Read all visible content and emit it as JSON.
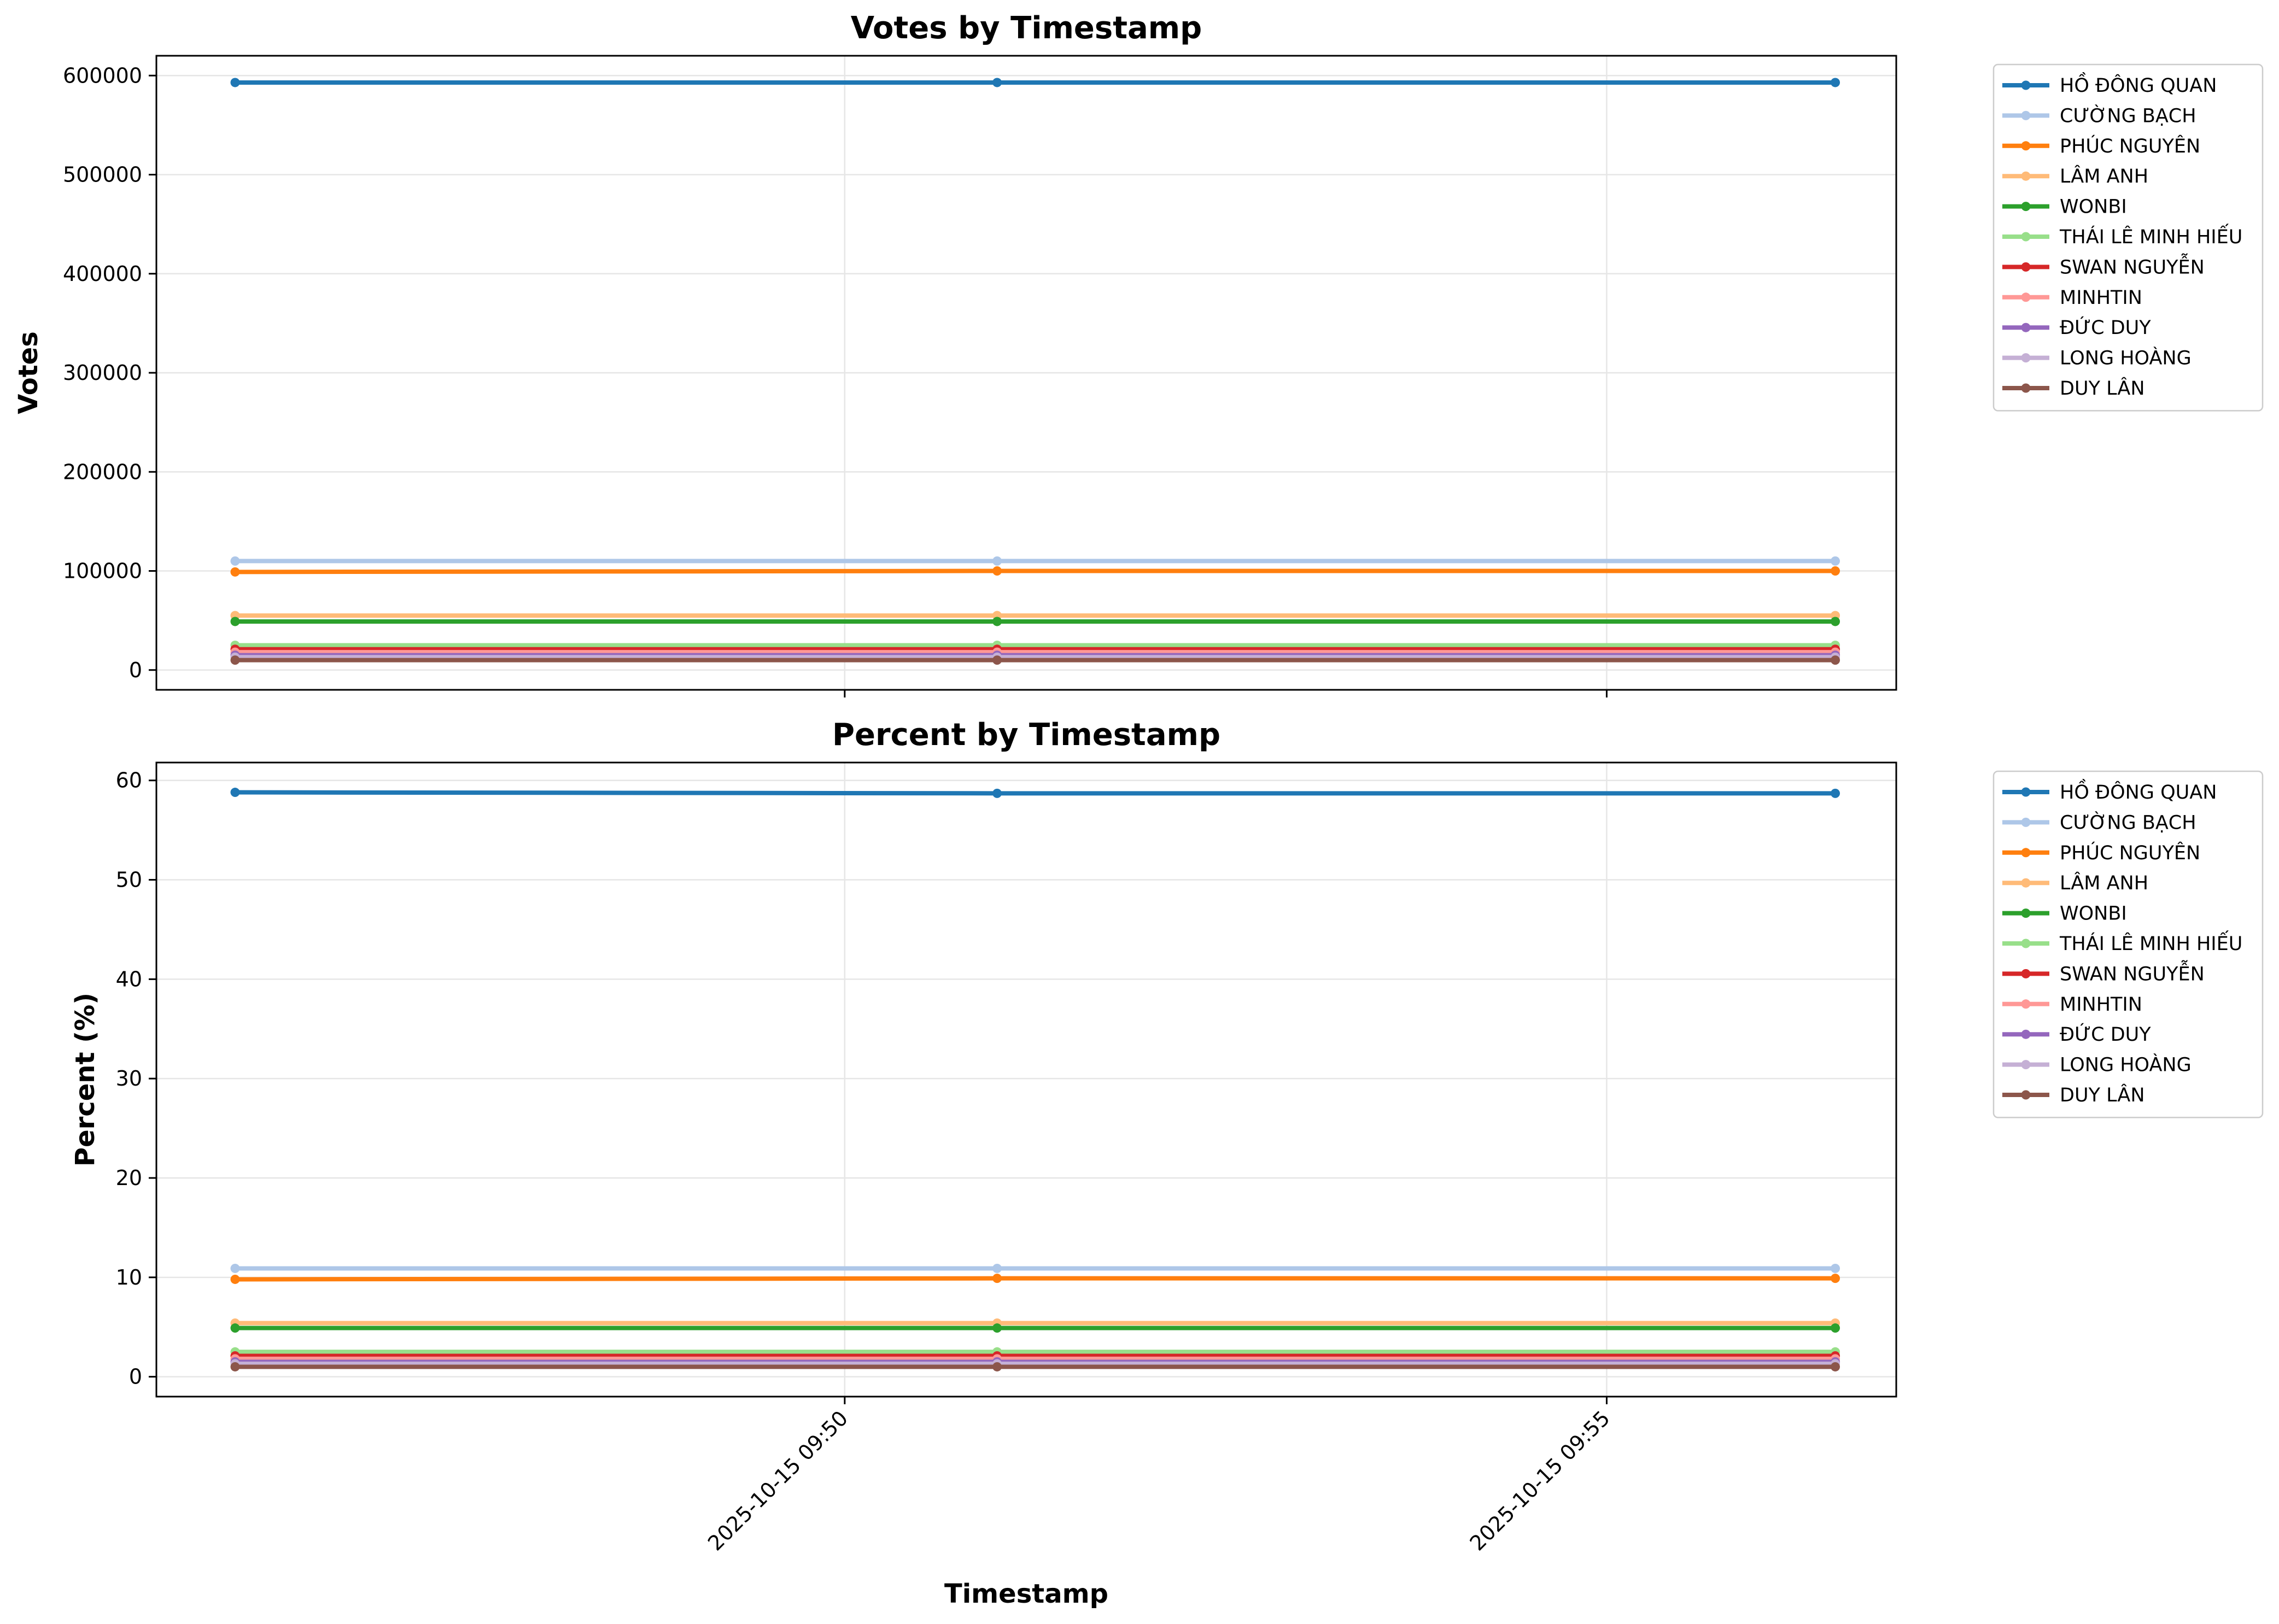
{
  "chart_data": [
    {
      "type": "line",
      "title": "Votes by Timestamp",
      "xlabel": "",
      "ylabel": "Votes",
      "x": [
        "2025-10-15 09:46:00",
        "2025-10-15 09:51:00",
        "2025-10-15 09:56:30"
      ],
      "xlim": [
        "2025-10-15 09:45:29",
        "2025-10-15 09:56:54"
      ],
      "ylim": [
        -20000,
        620000
      ],
      "yticks": [
        0,
        100000,
        200000,
        300000,
        400000,
        500000,
        600000
      ],
      "ytick_labels": [
        "0",
        "100000",
        "200000",
        "300000",
        "400000",
        "500000",
        "600000"
      ],
      "xticks": [
        "2025-10-15 09:50:00",
        "2025-10-15 09:55:00"
      ],
      "xtick_labels": [],
      "grid": true,
      "legend": "outside-right",
      "series": [
        {
          "name": "HỒ ĐÔNG QUAN",
          "color": "#1f77b4",
          "values": [
            593000,
            593000,
            593000
          ]
        },
        {
          "name": "CƯỜNG BẠCH",
          "color": "#aec7e8",
          "values": [
            110000,
            110000,
            110000
          ]
        },
        {
          "name": "PHÚC NGUYÊN",
          "color": "#ff7f0e",
          "values": [
            99000,
            100000,
            100000
          ]
        },
        {
          "name": "LÂM ANH",
          "color": "#ffbb78",
          "values": [
            55000,
            55000,
            55000
          ]
        },
        {
          "name": "WONBI",
          "color": "#2ca02c",
          "values": [
            49000,
            49000,
            49000
          ]
        },
        {
          "name": "THÁI LÊ MINH HIẾU",
          "color": "#98df8a",
          "values": [
            25000,
            25000,
            25000
          ]
        },
        {
          "name": "SWAN NGUYỄN",
          "color": "#d62728",
          "values": [
            21000,
            21000,
            21000
          ]
        },
        {
          "name": "MINHTIN",
          "color": "#ff9896",
          "values": [
            18000,
            18000,
            18000
          ]
        },
        {
          "name": "ĐỨC DUY",
          "color": "#9467bd",
          "values": [
            15000,
            15000,
            15000
          ]
        },
        {
          "name": "LONG HOÀNG",
          "color": "#c5b0d5",
          "values": [
            13000,
            13000,
            13000
          ]
        },
        {
          "name": "DUY LÂN",
          "color": "#8c564b",
          "values": [
            10000,
            10000,
            10000
          ]
        }
      ]
    },
    {
      "type": "line",
      "title": "Percent by Timestamp",
      "xlabel": "Timestamp",
      "ylabel": "Percent (%)",
      "x": [
        "2025-10-15 09:46:00",
        "2025-10-15 09:51:00",
        "2025-10-15 09:56:30"
      ],
      "xlim": [
        "2025-10-15 09:45:29",
        "2025-10-15 09:56:54"
      ],
      "ylim": [
        -2,
        61.8
      ],
      "yticks": [
        0,
        10,
        20,
        30,
        40,
        50,
        60
      ],
      "ytick_labels": [
        "0",
        "10",
        "20",
        "30",
        "40",
        "50",
        "60"
      ],
      "xticks": [
        "2025-10-15 09:50:00",
        "2025-10-15 09:55:00"
      ],
      "xtick_labels": [
        "2025-10-15 09:50",
        "2025-10-15 09:55"
      ],
      "grid": true,
      "legend": "outside-right",
      "series": [
        {
          "name": "HỒ ĐÔNG QUAN",
          "color": "#1f77b4",
          "values": [
            58.8,
            58.7,
            58.7
          ]
        },
        {
          "name": "CƯỜNG BẠCH",
          "color": "#aec7e8",
          "values": [
            10.9,
            10.9,
            10.9
          ]
        },
        {
          "name": "PHÚC NGUYÊN",
          "color": "#ff7f0e",
          "values": [
            9.8,
            9.9,
            9.9
          ]
        },
        {
          "name": "LÂM ANH",
          "color": "#ffbb78",
          "values": [
            5.4,
            5.4,
            5.4
          ]
        },
        {
          "name": "WONBI",
          "color": "#2ca02c",
          "values": [
            4.9,
            4.9,
            4.9
          ]
        },
        {
          "name": "THÁI LÊ MINH HIẾU",
          "color": "#98df8a",
          "values": [
            2.5,
            2.5,
            2.5
          ]
        },
        {
          "name": "SWAN NGUYỄN",
          "color": "#d62728",
          "values": [
            2.1,
            2.1,
            2.1
          ]
        },
        {
          "name": "MINHTIN",
          "color": "#ff9896",
          "values": [
            1.8,
            1.8,
            1.8
          ]
        },
        {
          "name": "ĐỨC DUY",
          "color": "#9467bd",
          "values": [
            1.5,
            1.5,
            1.5
          ]
        },
        {
          "name": "LONG HOÀNG",
          "color": "#c5b0d5",
          "values": [
            1.3,
            1.3,
            1.3
          ]
        },
        {
          "name": "DUY LÂN",
          "color": "#8c564b",
          "values": [
            1.0,
            1.0,
            1.0
          ]
        }
      ]
    }
  ]
}
